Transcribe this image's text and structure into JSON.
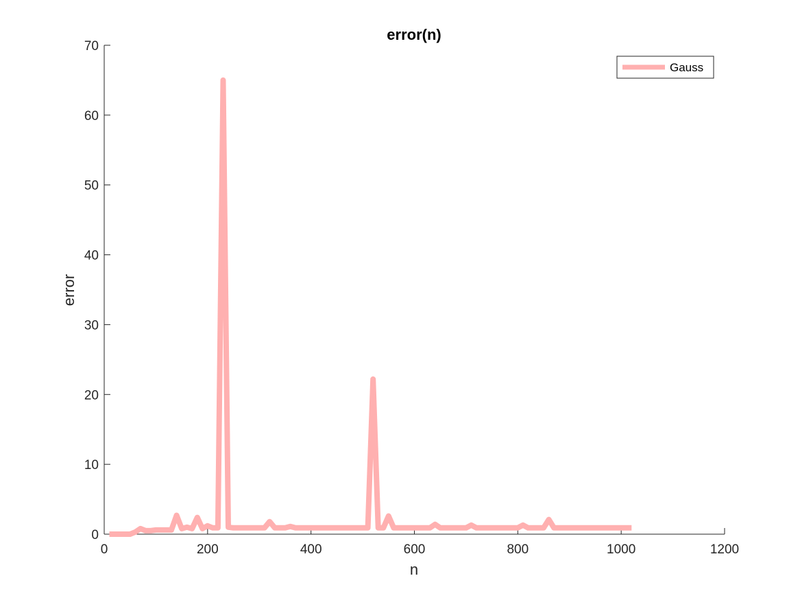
{
  "chart_data": {
    "type": "line",
    "title": "error(n)",
    "xlabel": "n",
    "ylabel": "error",
    "xlim": [
      0,
      1200
    ],
    "ylim": [
      0,
      70
    ],
    "xticks": [
      0,
      200,
      400,
      600,
      800,
      1000,
      1200
    ],
    "yticks": [
      0,
      10,
      20,
      30,
      40,
      50,
      60,
      70
    ],
    "grid": false,
    "legend_position": "top-right",
    "series": [
      {
        "name": "Gauss",
        "color": "#ffb0b0",
        "x": [
          10,
          20,
          30,
          40,
          50,
          60,
          70,
          80,
          90,
          100,
          110,
          120,
          130,
          140,
          150,
          160,
          170,
          180,
          190,
          200,
          210,
          220,
          230,
          240,
          250,
          260,
          270,
          280,
          290,
          300,
          310,
          320,
          330,
          340,
          350,
          360,
          370,
          380,
          390,
          400,
          410,
          420,
          430,
          440,
          450,
          460,
          470,
          480,
          490,
          500,
          510,
          520,
          530,
          540,
          550,
          560,
          570,
          580,
          590,
          600,
          610,
          620,
          630,
          640,
          650,
          660,
          670,
          680,
          690,
          700,
          710,
          720,
          730,
          740,
          750,
          760,
          770,
          780,
          790,
          800,
          810,
          820,
          830,
          840,
          850,
          860,
          870,
          880,
          890,
          900,
          910,
          920,
          930,
          940,
          950,
          960,
          970,
          980,
          990,
          1000,
          1010,
          1020
        ],
        "y": [
          0,
          0,
          0,
          0,
          0,
          0.3,
          0.8,
          0.5,
          0.5,
          0.6,
          0.6,
          0.6,
          0.6,
          2.7,
          0.8,
          1.0,
          0.8,
          2.4,
          0.8,
          1.2,
          0.9,
          0.9,
          65.0,
          1.0,
          0.9,
          0.9,
          0.9,
          0.9,
          0.9,
          0.9,
          0.9,
          1.8,
          0.9,
          0.9,
          0.9,
          1.1,
          0.9,
          0.9,
          0.9,
          0.9,
          0.9,
          0.9,
          0.9,
          0.9,
          0.9,
          0.9,
          0.9,
          0.9,
          0.9,
          0.9,
          0.9,
          22.2,
          0.9,
          0.9,
          2.6,
          0.9,
          0.9,
          0.9,
          0.9,
          0.9,
          0.9,
          0.9,
          0.9,
          1.4,
          0.9,
          0.9,
          0.9,
          0.9,
          0.9,
          0.9,
          1.3,
          0.9,
          0.9,
          0.9,
          0.9,
          0.9,
          0.9,
          0.9,
          0.9,
          0.9,
          1.3,
          0.9,
          0.9,
          0.9,
          0.9,
          2.1,
          0.9,
          0.9,
          0.9,
          0.9,
          0.9,
          0.9,
          0.9,
          0.9,
          0.9,
          0.9,
          0.9,
          0.9,
          0.9,
          0.9,
          0.9,
          0.9
        ]
      }
    ]
  }
}
